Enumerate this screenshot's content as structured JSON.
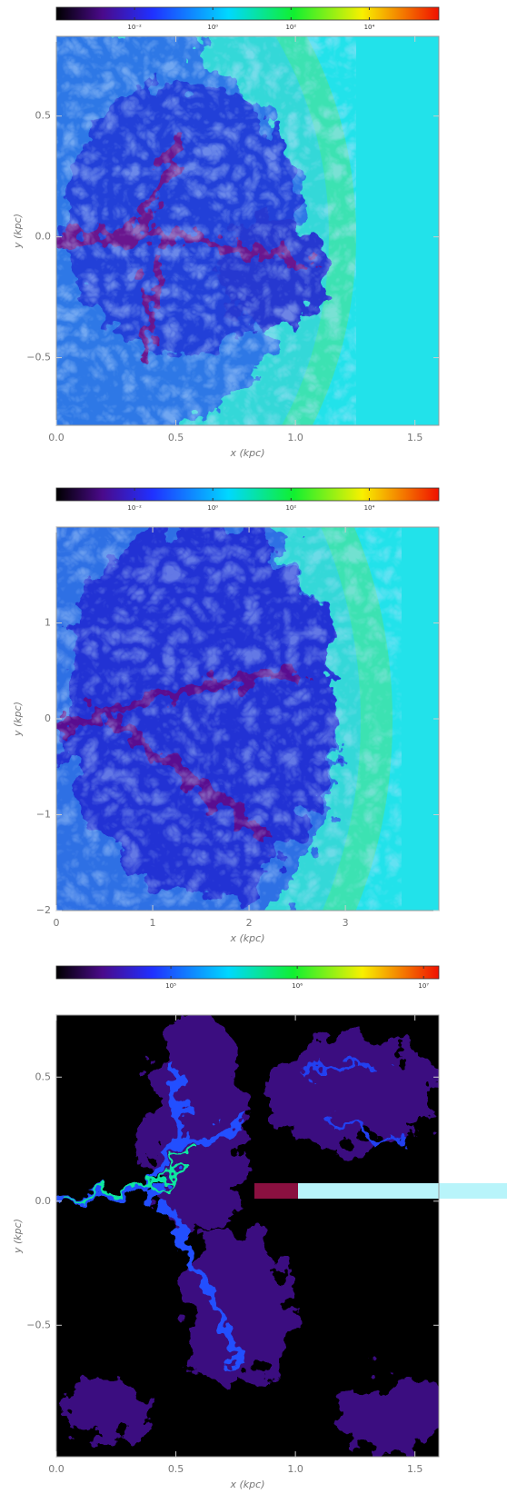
{
  "chart_data": [
    {
      "type": "image",
      "xlabel": "x (kpc)",
      "ylabel": "y (kpc)",
      "xlim": [
        0,
        1.6
      ],
      "ylim": [
        -0.78,
        0.83
      ],
      "xticks": [
        {
          "value": 0,
          "label": "0.0"
        },
        0.5,
        {
          "value": 1,
          "label": "1.0"
        },
        1.5
      ],
      "yticks": [
        {
          "value": -0.5,
          "label": "−0.5"
        },
        {
          "value": 0,
          "label": "0.0"
        },
        0.5
      ],
      "colorbar": {
        "log": true,
        "lim": [
          0.0001,
          600000
        ],
        "ticks": [
          {
            "value": 0.01,
            "label": "10⁻²"
          },
          {
            "value": 1,
            "label": "10⁰"
          },
          {
            "value": 100,
            "label": "10²"
          },
          {
            "value": 10000,
            "label": "10⁴"
          }
        ]
      }
    },
    {
      "type": "image",
      "xlabel": "x (kpc)",
      "ylabel": "y (kpc)",
      "xlim": [
        0,
        3.97
      ],
      "ylim": [
        -2,
        2
      ],
      "xticks": [
        0,
        1,
        2,
        3
      ],
      "yticks": [
        {
          "value": -2,
          "label": "−2"
        },
        {
          "value": -1,
          "label": "−1"
        },
        0,
        1
      ],
      "colorbar": {
        "log": true,
        "lim": [
          0.0001,
          600000
        ],
        "ticks": [
          {
            "value": 0.01,
            "label": "10⁻²"
          },
          {
            "value": 1,
            "label": "10⁰"
          },
          {
            "value": 100,
            "label": "10²"
          },
          {
            "value": 10000,
            "label": "10⁴"
          }
        ]
      }
    },
    {
      "type": "image",
      "xlabel": "x (kpc)",
      "ylabel": "y (kpc)",
      "xlim": [
        0,
        1.6
      ],
      "ylim": [
        -1.03,
        0.75
      ],
      "xticks": [
        {
          "value": 0,
          "label": "0.0"
        },
        0.5,
        {
          "value": 1,
          "label": "1.0"
        },
        1.5
      ],
      "yticks": [
        {
          "value": -0.5,
          "label": "−0.5"
        },
        {
          "value": 0,
          "label": "0.0"
        },
        0.5
      ],
      "colorbar": {
        "log": true,
        "lim": [
          12400,
          13200000
        ],
        "ticks": [
          {
            "value": 100000,
            "label": "10⁵"
          },
          {
            "value": 1000000,
            "label": "10⁶"
          },
          {
            "value": 10000000,
            "label": "10⁷"
          }
        ]
      }
    }
  ]
}
